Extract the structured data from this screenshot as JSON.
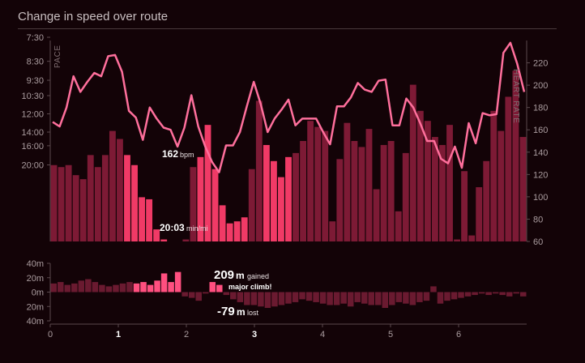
{
  "title": "Change in speed over route",
  "colors": {
    "background": "#130307",
    "bar": "#7d1a35",
    "bar_highlight": "#f03a66",
    "line": "#ff6f9c",
    "axis": "#5b4a4e",
    "elev_bar": "#6a1a30",
    "elev_highlight": "#ff4f7f"
  },
  "chart_data": [
    {
      "type": "bar",
      "title": "Change in speed over route",
      "y_axis_label": "PACE",
      "y2_axis_label": "HEART RATE",
      "pace_ticks": [
        "7:30",
        "8:30",
        "9:30",
        "10:30",
        "12:00",
        "14:00",
        "16:00",
        "20:00"
      ],
      "pace_tick_values": [
        7.5,
        8.5,
        9.5,
        10.5,
        12.0,
        14.0,
        16.0,
        20.0
      ],
      "hr_ticks": [
        60,
        80,
        100,
        120,
        140,
        160,
        180,
        200,
        220
      ],
      "hr_ylim": [
        60,
        240
      ],
      "x_ticks": [
        "0",
        "1",
        "2",
        "3",
        "4",
        "5",
        "6"
      ],
      "x_bold_ticks": [
        "1",
        "3"
      ],
      "xlim": [
        0,
        7
      ],
      "speed_bars": {
        "name": "speed",
        "values": [
          0.38,
          0.37,
          0.38,
          0.33,
          0.31,
          0.43,
          0.37,
          0.43,
          0.55,
          0.51,
          0.43,
          0.38,
          0.22,
          0.21,
          0.06,
          0.01,
          0,
          0,
          0.01,
          0.37,
          0.42,
          0.58,
          0.36,
          0.18,
          0.09,
          0.1,
          0.12,
          0.36,
          0.7,
          0.48,
          0.4,
          0.32,
          0.42,
          0.44,
          0.5,
          0.6,
          0.57,
          0.55,
          0.1,
          0.41,
          0.59,
          0.5,
          0.47,
          0.56,
          0.26,
          0.48,
          0.5,
          0.15,
          0.44,
          0.78,
          0.65,
          0.6,
          0.52,
          0.48,
          0.58,
          0.01,
          0.35,
          0.03,
          0.27,
          0.4,
          0.65,
          0.55,
          0.72,
          0.85,
          0.52
        ],
        "highlight_ranges": [
          [
            10,
            17
          ],
          [
            20,
            27
          ],
          [
            29,
            33
          ]
        ]
      },
      "heart_rate": {
        "name": "heart rate",
        "values": [
          167,
          163,
          180,
          208,
          194,
          203,
          211,
          208,
          226,
          227,
          212,
          177,
          171,
          151,
          180,
          170,
          162,
          160,
          145,
          162,
          191,
          163,
          145,
          131,
          122,
          146,
          146,
          158,
          181,
          203,
          183,
          158,
          170,
          178,
          187,
          164,
          170,
          170,
          170,
          158,
          147,
          181,
          181,
          189,
          202,
          196,
          194,
          204,
          205,
          164,
          164,
          188,
          180,
          166,
          150,
          150,
          134,
          130,
          145,
          126,
          166,
          148,
          175,
          173,
          174,
          229,
          238,
          219,
          194
        ],
        "annotation_bpm": "162",
        "annotation_bpm_unit": "bpm",
        "annotation_pace": "20:03",
        "annotation_pace_unit": "min/mi"
      }
    },
    {
      "type": "bar",
      "title": "",
      "y_ticks": [
        "40m",
        "20m",
        "0m",
        "20m",
        "40m"
      ],
      "ylim": [
        -40,
        40
      ],
      "x_ticks": [
        "0",
        "1",
        "2",
        "3",
        "4",
        "5",
        "6"
      ],
      "x_bold_ticks": [
        "1",
        "3"
      ],
      "xlim": [
        0,
        7
      ],
      "elevation_change": {
        "name": "elevation change",
        "values": [
          12,
          14,
          10,
          12,
          16,
          18,
          14,
          10,
          8,
          10,
          12,
          14,
          12,
          14,
          10,
          16,
          26,
          14,
          28,
          -6,
          -8,
          -12,
          -2,
          14,
          10,
          -4,
          -10,
          -14,
          -18,
          -18,
          -20,
          -22,
          -20,
          -18,
          -16,
          -14,
          -10,
          -12,
          -14,
          -16,
          -18,
          -18,
          -16,
          -20,
          -14,
          -16,
          -18,
          -18,
          -22,
          -18,
          -14,
          -16,
          -18,
          -14,
          -12,
          8,
          -16,
          -12,
          -10,
          -8,
          -6,
          -4,
          -2,
          -4,
          -2,
          -4,
          -6,
          -2,
          -6
        ],
        "highlight_ranges": [
          [
            12,
            19
          ],
          [
            20,
            27
          ],
          [
            29,
            33
          ]
        ]
      },
      "gained_value": "209",
      "gained_unit": "m",
      "gained_label": "gained",
      "climb_label": "major climb!",
      "lost_value": "-79",
      "lost_unit": "m",
      "lost_label": "lost"
    }
  ]
}
